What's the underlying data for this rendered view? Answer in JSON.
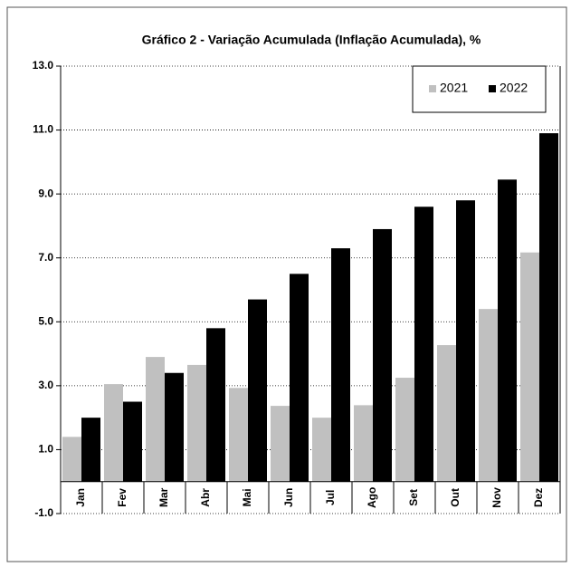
{
  "chart_data": {
    "type": "bar",
    "title": "Gráfico 2 - Variação Acumulada (Inflação Acumulada), %",
    "categories": [
      "Jan",
      "Fev",
      "Mar",
      "Abr",
      "Mai",
      "Jun",
      "Jul",
      "Ago",
      "Set",
      "Out",
      "Nov",
      "Dez"
    ],
    "series": [
      {
        "name": "2021",
        "color": "#c0c0c0",
        "values": [
          1.4,
          3.05,
          3.9,
          3.65,
          2.93,
          2.37,
          2.0,
          2.39,
          3.25,
          4.27,
          5.4,
          7.17
        ]
      },
      {
        "name": "2022",
        "color": "#000000",
        "values": [
          2.0,
          2.5,
          3.4,
          4.8,
          5.7,
          6.5,
          7.3,
          7.9,
          8.6,
          8.8,
          9.45,
          10.9
        ]
      }
    ],
    "ylim": [
      -1,
      13
    ],
    "yticks": [
      {
        "value": -1,
        "label": "-1.0"
      },
      {
        "value": 1,
        "label": "1.0"
      },
      {
        "value": 3,
        "label": "3.0"
      },
      {
        "value": 5,
        "label": "5.0"
      },
      {
        "value": 7,
        "label": "7.0"
      },
      {
        "value": 9,
        "label": "9.0"
      },
      {
        "value": 11,
        "label": "11.0"
      },
      {
        "value": 13,
        "label": "13.0"
      }
    ],
    "grid": true,
    "legend": "top-right"
  }
}
